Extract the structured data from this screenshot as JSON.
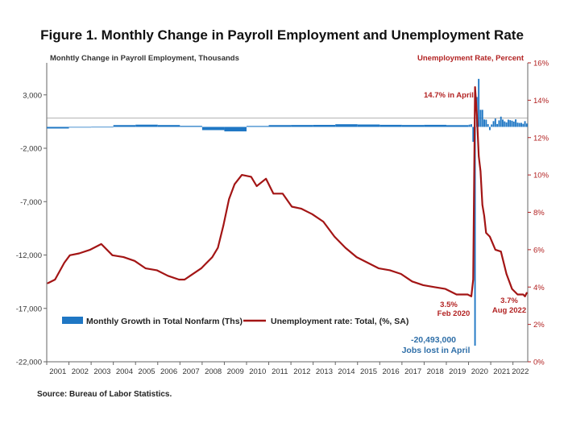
{
  "title": "Figure 1. Monthly Change in Payroll Employment and Unemployment Rate",
  "source": "Source: Bureau of Labor Statistics.",
  "colors": {
    "bars": "#1f77c4",
    "line": "#a31515",
    "right_axis": "#b22222"
  },
  "chart_data": {
    "type": "bar+line",
    "left_axis": {
      "title": "Monhtly Change in Payroll Employment, Thousands",
      "ticks": [
        "3,000",
        "-2,000",
        "-7,000",
        "-12,000",
        "-17,000",
        "-22,000"
      ],
      "tick_values": [
        3000,
        -2000,
        -7000,
        -12000,
        -17000,
        -22000
      ],
      "ylim": [
        -22000,
        6000
      ]
    },
    "right_axis": {
      "title": "Unemployment Rate, Percent",
      "ticks": [
        "16%",
        "14%",
        "12%",
        "10%",
        "8%",
        "6%",
        "4%",
        "2%",
        "0%"
      ],
      "tick_values": [
        16,
        14,
        12,
        10,
        8,
        6,
        4,
        2,
        0
      ],
      "ylim": [
        0,
        16
      ]
    },
    "x_ticks": [
      "2001",
      "2002",
      "2003",
      "2004",
      "2005",
      "2006",
      "2007",
      "2008",
      "2009",
      "2010",
      "2011",
      "2012",
      "2013",
      "2014",
      "2015",
      "2016",
      "2017",
      "2018",
      "2019",
      "2020",
      "2021",
      "2022"
    ],
    "x_range": [
      "2001-01",
      "2022-08"
    ],
    "series": [
      {
        "name": "Monthly Growth in Total Nonfarm (Ths)",
        "kind": "bar",
        "axis": "left",
        "annual_monthly_avg": [
          {
            "year": 2001,
            "value": -150
          },
          {
            "year": 2002,
            "value": -45
          },
          {
            "year": 2003,
            "value": 10
          },
          {
            "year": 2004,
            "value": 170
          },
          {
            "year": 2005,
            "value": 210
          },
          {
            "year": 2006,
            "value": 175
          },
          {
            "year": 2007,
            "value": 95
          },
          {
            "year": 2008,
            "value": -300
          },
          {
            "year": 2009,
            "value": -420
          },
          {
            "year": 2010,
            "value": 85
          },
          {
            "year": 2011,
            "value": 170
          },
          {
            "year": 2012,
            "value": 180
          },
          {
            "year": 2013,
            "value": 190
          },
          {
            "year": 2014,
            "value": 250
          },
          {
            "year": 2015,
            "value": 225
          },
          {
            "year": 2016,
            "value": 195
          },
          {
            "year": 2017,
            "value": 180
          },
          {
            "year": 2018,
            "value": 195
          },
          {
            "year": 2019,
            "value": 165
          }
        ],
        "months": [
          {
            "date": "2020-01",
            "value": 214
          },
          {
            "date": "2020-02",
            "value": 251
          },
          {
            "date": "2020-03",
            "value": -1400
          },
          {
            "date": "2020-04",
            "value": -20493
          },
          {
            "date": "2020-05",
            "value": 2800
          },
          {
            "date": "2020-06",
            "value": 4500
          },
          {
            "date": "2020-07",
            "value": 1600
          },
          {
            "date": "2020-08",
            "value": 1600
          },
          {
            "date": "2020-09",
            "value": 700
          },
          {
            "date": "2020-10",
            "value": 680
          },
          {
            "date": "2020-11",
            "value": 260
          },
          {
            "date": "2020-12",
            "value": -300
          },
          {
            "date": "2021-01",
            "value": 230
          },
          {
            "date": "2021-02",
            "value": 540
          },
          {
            "date": "2021-03",
            "value": 780
          },
          {
            "date": "2021-04",
            "value": 270
          },
          {
            "date": "2021-05",
            "value": 610
          },
          {
            "date": "2021-06",
            "value": 960
          },
          {
            "date": "2021-07",
            "value": 690
          },
          {
            "date": "2021-08",
            "value": 520
          },
          {
            "date": "2021-09",
            "value": 420
          },
          {
            "date": "2021-10",
            "value": 680
          },
          {
            "date": "2021-11",
            "value": 630
          },
          {
            "date": "2021-12",
            "value": 580
          },
          {
            "date": "2022-01",
            "value": 500
          },
          {
            "date": "2022-02",
            "value": 710
          },
          {
            "date": "2022-03",
            "value": 400
          },
          {
            "date": "2022-04",
            "value": 370
          },
          {
            "date": "2022-05",
            "value": 380
          },
          {
            "date": "2022-06",
            "value": 290
          },
          {
            "date": "2022-07",
            "value": 540
          },
          {
            "date": "2022-08",
            "value": 315
          }
        ]
      },
      {
        "name": "Unemployment rate: Total, (%, SA)",
        "kind": "line",
        "axis": "right",
        "points": [
          {
            "date": "2001-01",
            "value": 4.2
          },
          {
            "date": "2001-05",
            "value": 4.4
          },
          {
            "date": "2001-10",
            "value": 5.3
          },
          {
            "date": "2002-01",
            "value": 5.7
          },
          {
            "date": "2002-06",
            "value": 5.8
          },
          {
            "date": "2002-12",
            "value": 6.0
          },
          {
            "date": "2003-06",
            "value": 6.3
          },
          {
            "date": "2003-12",
            "value": 5.7
          },
          {
            "date": "2004-06",
            "value": 5.6
          },
          {
            "date": "2004-12",
            "value": 5.4
          },
          {
            "date": "2005-06",
            "value": 5.0
          },
          {
            "date": "2005-12",
            "value": 4.9
          },
          {
            "date": "2006-06",
            "value": 4.6
          },
          {
            "date": "2006-12",
            "value": 4.4
          },
          {
            "date": "2007-03",
            "value": 4.4
          },
          {
            "date": "2007-06",
            "value": 4.6
          },
          {
            "date": "2007-12",
            "value": 5.0
          },
          {
            "date": "2008-06",
            "value": 5.6
          },
          {
            "date": "2008-09",
            "value": 6.1
          },
          {
            "date": "2008-12",
            "value": 7.3
          },
          {
            "date": "2009-03",
            "value": 8.7
          },
          {
            "date": "2009-06",
            "value": 9.5
          },
          {
            "date": "2009-10",
            "value": 10.0
          },
          {
            "date": "2010-03",
            "value": 9.9
          },
          {
            "date": "2010-06",
            "value": 9.4
          },
          {
            "date": "2010-11",
            "value": 9.8
          },
          {
            "date": "2011-03",
            "value": 9.0
          },
          {
            "date": "2011-08",
            "value": 9.0
          },
          {
            "date": "2012-01",
            "value": 8.3
          },
          {
            "date": "2012-06",
            "value": 8.2
          },
          {
            "date": "2012-12",
            "value": 7.9
          },
          {
            "date": "2013-06",
            "value": 7.5
          },
          {
            "date": "2013-12",
            "value": 6.7
          },
          {
            "date": "2014-06",
            "value": 6.1
          },
          {
            "date": "2014-12",
            "value": 5.6
          },
          {
            "date": "2015-06",
            "value": 5.3
          },
          {
            "date": "2015-12",
            "value": 5.0
          },
          {
            "date": "2016-06",
            "value": 4.9
          },
          {
            "date": "2016-12",
            "value": 4.7
          },
          {
            "date": "2017-06",
            "value": 4.3
          },
          {
            "date": "2017-12",
            "value": 4.1
          },
          {
            "date": "2018-06",
            "value": 4.0
          },
          {
            "date": "2018-12",
            "value": 3.9
          },
          {
            "date": "2019-06",
            "value": 3.6
          },
          {
            "date": "2019-12",
            "value": 3.6
          },
          {
            "date": "2020-02",
            "value": 3.5
          },
          {
            "date": "2020-03",
            "value": 4.4
          },
          {
            "date": "2020-04",
            "value": 14.7
          },
          {
            "date": "2020-05",
            "value": 13.2
          },
          {
            "date": "2020-06",
            "value": 11.0
          },
          {
            "date": "2020-07",
            "value": 10.2
          },
          {
            "date": "2020-08",
            "value": 8.4
          },
          {
            "date": "2020-09",
            "value": 7.8
          },
          {
            "date": "2020-10",
            "value": 6.9
          },
          {
            "date": "2020-12",
            "value": 6.7
          },
          {
            "date": "2021-03",
            "value": 6.0
          },
          {
            "date": "2021-06",
            "value": 5.9
          },
          {
            "date": "2021-09",
            "value": 4.7
          },
          {
            "date": "2021-12",
            "value": 3.9
          },
          {
            "date": "2022-03",
            "value": 3.6
          },
          {
            "date": "2022-06",
            "value": 3.6
          },
          {
            "date": "2022-07",
            "value": 3.5
          },
          {
            "date": "2022-08",
            "value": 3.7
          }
        ]
      }
    ],
    "annotations": {
      "peak": "14.7% in April",
      "feb": [
        "3.5%",
        "Feb 2020"
      ],
      "aug": [
        "3.7%",
        "Aug 2022"
      ],
      "jobs": [
        "-20,493,000",
        "Jobs lost in April"
      ]
    },
    "legend": {
      "placement": "bottom-left",
      "bars": "Monthly Growth in Total Nonfarm (Ths)",
      "line": "Unemployment rate: Total, (%, SA)"
    },
    "grid": false
  }
}
